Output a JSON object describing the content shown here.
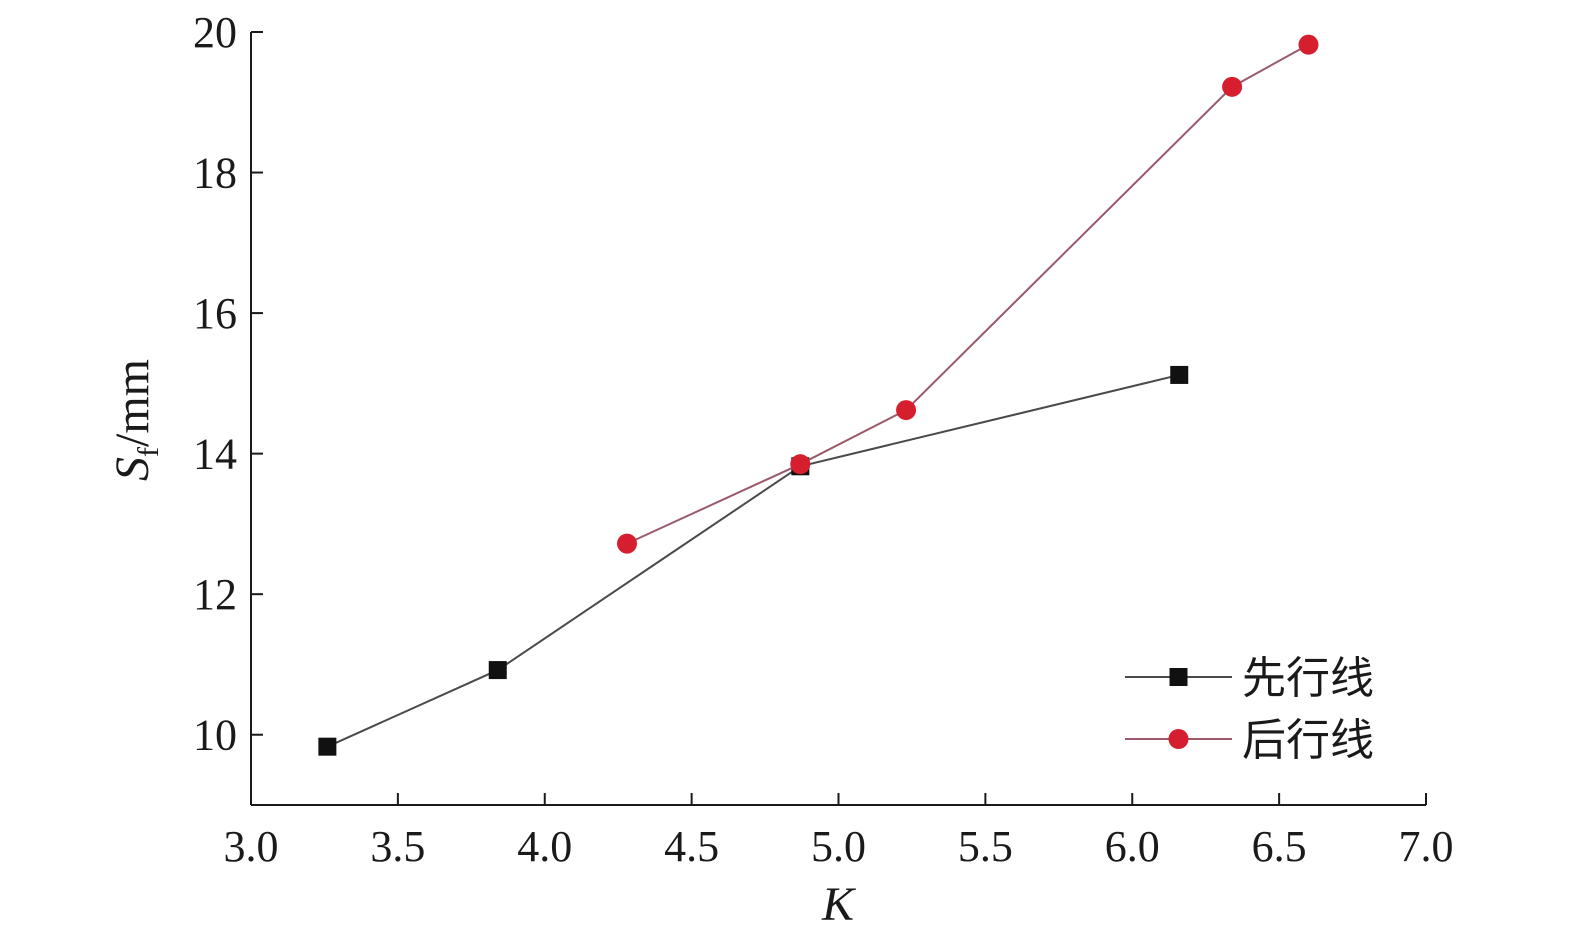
{
  "chart_data": {
    "type": "line",
    "xlabel": "K",
    "ylabel": {
      "main": "S",
      "sub": "f",
      "unit": "/mm"
    },
    "xlim": [
      3.0,
      7.0
    ],
    "ylim": [
      9.0,
      20.0
    ],
    "x_ticks": [
      "3.0",
      "3.5",
      "4.0",
      "4.5",
      "5.0",
      "5.5",
      "6.0",
      "6.5",
      "7.0"
    ],
    "y_ticks": [
      "10",
      "12",
      "14",
      "16",
      "18",
      "20"
    ],
    "x_tick_values": [
      3.0,
      3.5,
      4.0,
      4.5,
      5.0,
      5.5,
      6.0,
      6.5,
      7.0
    ],
    "y_tick_values": [
      10,
      12,
      14,
      16,
      18,
      20
    ],
    "grid": false,
    "legend": "bottom-right",
    "series": [
      {
        "name": "先行线",
        "marker": "square",
        "color": "#111111",
        "line_color": "#4a4a4a",
        "x": [
          3.26,
          3.84,
          4.87,
          6.16
        ],
        "y": [
          9.83,
          10.92,
          13.82,
          15.12
        ]
      },
      {
        "name": "后行线",
        "marker": "circle",
        "color": "#d61f2e",
        "line_color": "#9a5a6a",
        "x": [
          4.28,
          4.87,
          5.23,
          6.34,
          6.6
        ],
        "y": [
          12.72,
          13.85,
          14.62,
          19.22,
          19.82
        ]
      }
    ]
  }
}
